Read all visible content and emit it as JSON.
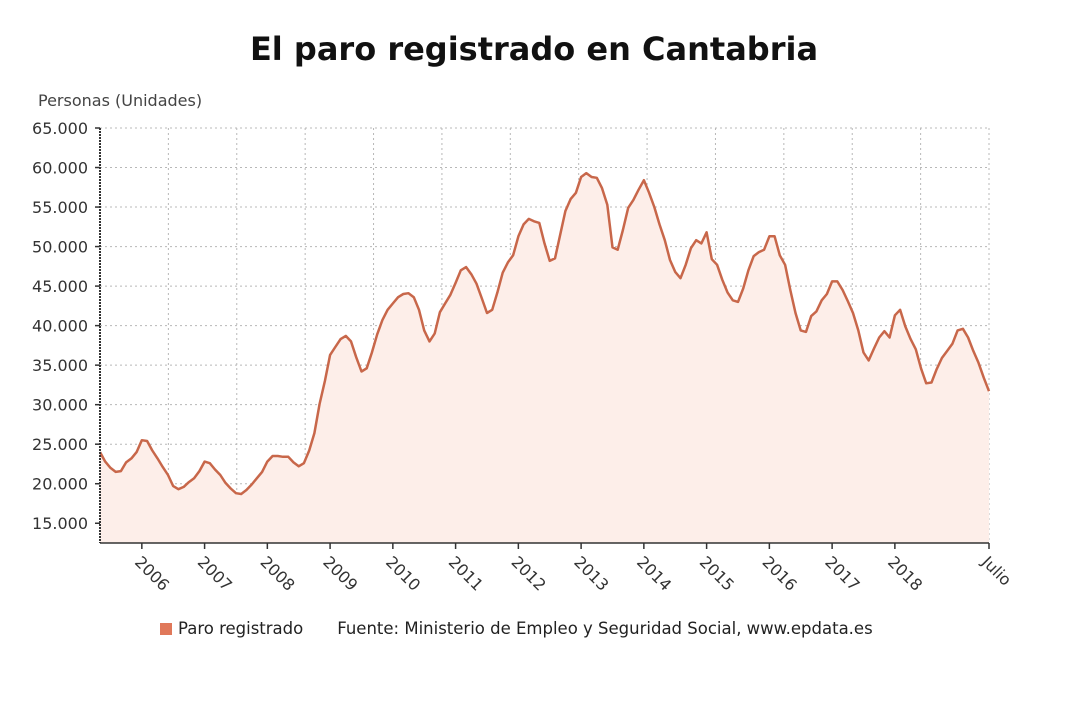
{
  "chart_data": {
    "type": "area",
    "title": "El paro registrado en Cantabria",
    "ylabel": "Personas (Unidades)",
    "xlabel": "",
    "ylim": [
      12500,
      65000
    ],
    "yticks": [
      15000,
      20000,
      25000,
      30000,
      35000,
      40000,
      45000,
      50000,
      55000,
      60000,
      65000
    ],
    "ytick_labels": [
      "15.000",
      "20.000",
      "25.000",
      "30.000",
      "35.000",
      "40.000",
      "45.000",
      "50.000",
      "55.000",
      "60.000",
      "65.000"
    ],
    "xticks": [
      "2006-01",
      "2007-01",
      "2008-01",
      "2009-01",
      "2010-01",
      "2011-01",
      "2012-01",
      "2013-01",
      "2014-01",
      "2015-01",
      "2016-01",
      "2017-01",
      "2018-01",
      "2019-07"
    ],
    "xtick_labels": [
      "2006",
      "2007",
      "2008",
      "2009",
      "2010",
      "2011",
      "2012",
      "2013",
      "2014",
      "2015",
      "2016",
      "2017",
      "2018",
      "Julio"
    ],
    "grid": true,
    "legend": "bottom",
    "colors": {
      "line": "#c8674a",
      "fill": "#fdeee9",
      "legend_swatch": "#e0785a"
    },
    "series": [
      {
        "name": "Paro registrado",
        "x": [
          "2005-05",
          "2005-06",
          "2005-07",
          "2005-08",
          "2005-09",
          "2005-10",
          "2005-11",
          "2005-12",
          "2006-01",
          "2006-02",
          "2006-03",
          "2006-04",
          "2006-05",
          "2006-06",
          "2006-07",
          "2006-08",
          "2006-09",
          "2006-10",
          "2006-11",
          "2006-12",
          "2007-01",
          "2007-02",
          "2007-03",
          "2007-04",
          "2007-05",
          "2007-06",
          "2007-07",
          "2007-08",
          "2007-09",
          "2007-10",
          "2007-11",
          "2007-12",
          "2008-01",
          "2008-02",
          "2008-03",
          "2008-04",
          "2008-05",
          "2008-06",
          "2008-07",
          "2008-08",
          "2008-09",
          "2008-10",
          "2008-11",
          "2008-12",
          "2009-01",
          "2009-02",
          "2009-03",
          "2009-04",
          "2009-05",
          "2009-06",
          "2009-07",
          "2009-08",
          "2009-09",
          "2009-10",
          "2009-11",
          "2009-12",
          "2010-01",
          "2010-02",
          "2010-03",
          "2010-04",
          "2010-05",
          "2010-06",
          "2010-07",
          "2010-08",
          "2010-09",
          "2010-10",
          "2010-11",
          "2010-12",
          "2011-01",
          "2011-02",
          "2011-03",
          "2011-04",
          "2011-05",
          "2011-06",
          "2011-07",
          "2011-08",
          "2011-09",
          "2011-10",
          "2011-11",
          "2011-12",
          "2012-01",
          "2012-02",
          "2012-03",
          "2012-04",
          "2012-05",
          "2012-06",
          "2012-07",
          "2012-08",
          "2012-09",
          "2012-10",
          "2012-11",
          "2012-12",
          "2013-01",
          "2013-02",
          "2013-03",
          "2013-04",
          "2013-05",
          "2013-06",
          "2013-07",
          "2013-08",
          "2013-09",
          "2013-10",
          "2013-11",
          "2013-12",
          "2014-01",
          "2014-02",
          "2014-03",
          "2014-04",
          "2014-05",
          "2014-06",
          "2014-07",
          "2014-08",
          "2014-09",
          "2014-10",
          "2014-11",
          "2014-12",
          "2015-01",
          "2015-02",
          "2015-03",
          "2015-04",
          "2015-05",
          "2015-06",
          "2015-07",
          "2015-08",
          "2015-09",
          "2015-10",
          "2015-11",
          "2015-12",
          "2016-01",
          "2016-02",
          "2016-03",
          "2016-04",
          "2016-05",
          "2016-06",
          "2016-07",
          "2016-08",
          "2016-09",
          "2016-10",
          "2016-11",
          "2016-12",
          "2017-01",
          "2017-02",
          "2017-03",
          "2017-04",
          "2017-05",
          "2017-06",
          "2017-07",
          "2017-08",
          "2017-09",
          "2017-10",
          "2017-11",
          "2017-12",
          "2018-01",
          "2018-02",
          "2018-03",
          "2018-04",
          "2018-05",
          "2018-06",
          "2018-07",
          "2018-08",
          "2018-09",
          "2018-10",
          "2018-11",
          "2018-12",
          "2019-01",
          "2019-02",
          "2019-03",
          "2019-04",
          "2019-05",
          "2019-06",
          "2019-07"
        ],
        "values": [
          24000,
          22800,
          22000,
          21500,
          21600,
          22700,
          23200,
          24000,
          25500,
          25400,
          24200,
          23200,
          22100,
          21100,
          19700,
          19300,
          19600,
          20200,
          20700,
          21600,
          22800,
          22600,
          21800,
          21100,
          20100,
          19400,
          18800,
          18700,
          19200,
          19900,
          20700,
          21500,
          22800,
          23500,
          23500,
          23400,
          23400,
          22700,
          22200,
          22600,
          24200,
          26400,
          30100,
          33000,
          36300,
          37300,
          38300,
          38700,
          38000,
          36000,
          34200,
          34600,
          36600,
          38900,
          40700,
          42000,
          42800,
          43600,
          44000,
          44100,
          43600,
          42000,
          39400,
          38000,
          39000,
          41700,
          42800,
          43900,
          45400,
          47000,
          47400,
          46500,
          45300,
          43500,
          41600,
          42000,
          44200,
          46700,
          48000,
          48900,
          51300,
          52800,
          53500,
          53200,
          53000,
          50400,
          48200,
          48500,
          51500,
          54500,
          56000,
          56800,
          58800,
          59300,
          58800,
          58700,
          57400,
          55300,
          49900,
          49600,
          52100,
          54900,
          55900,
          57200,
          58400,
          56800,
          55000,
          52800,
          50800,
          48300,
          46800,
          46000,
          47700,
          49800,
          50800,
          50400,
          51800,
          48400,
          47700,
          45800,
          44200,
          43200,
          43000,
          44700,
          47000,
          48800,
          49300,
          49600,
          51300,
          51300,
          48900,
          47700,
          44500,
          41600,
          39400,
          39200,
          41200,
          41800,
          43200,
          44000,
          45600,
          45600,
          44500,
          43100,
          41600,
          39400,
          36600,
          35600,
          37100,
          38500,
          39300,
          38500,
          41300,
          42000,
          39900,
          38300,
          37000,
          34600,
          32700,
          32800,
          34500,
          35900,
          36800,
          37700,
          39400,
          39600,
          38500,
          36800,
          35300,
          33400,
          31700
        ]
      }
    ],
    "source": "Fuente: Ministerio de Empleo y Seguridad Social, www.epdata.es"
  }
}
